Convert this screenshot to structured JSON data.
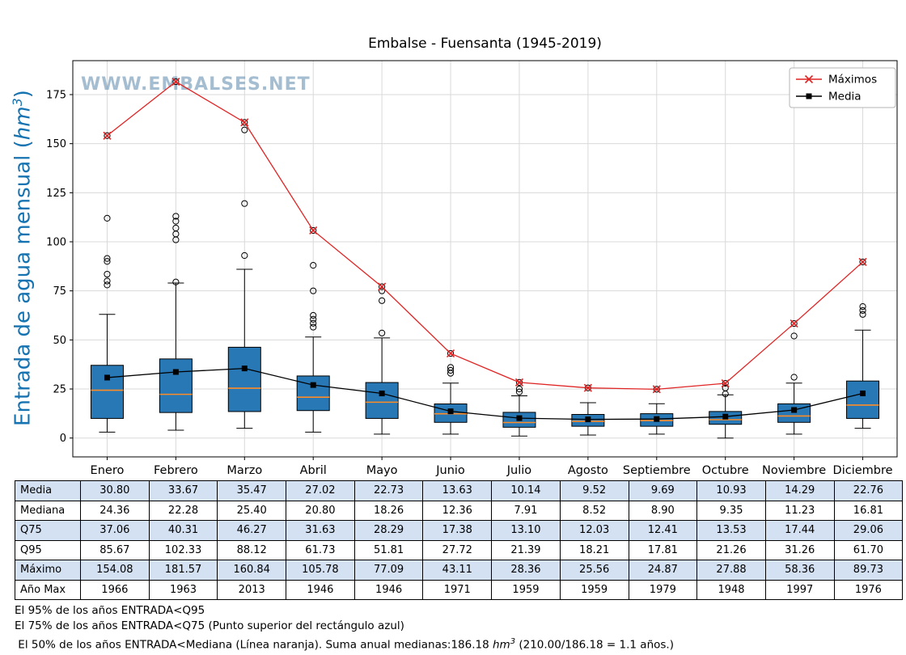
{
  "page": {
    "title": "Embalse - Fuensanta (1945-2019)",
    "watermark": "WWW.EMBALSES.NET",
    "ylabel_prefix": "Entrada de agua mensual (",
    "ylabel_unit": "hm",
    "ylabel_exp": "3",
    "ylabel_suffix": ")"
  },
  "legend": [
    {
      "label": "Máximos",
      "color": "#e02424",
      "marker": "x"
    },
    {
      "label": "Media",
      "color": "#000000",
      "marker": "square"
    }
  ],
  "chart_data": {
    "type": "box",
    "title": "Embalse - Fuensanta (1945-2019)",
    "xlabel": "",
    "ylabel": "Entrada de agua mensual (hm3)",
    "grid": true,
    "legend_position": "upper right",
    "ylim": [
      -9.6,
      192.3
    ],
    "yticks": [
      0,
      25,
      50,
      75,
      100,
      125,
      150,
      175
    ],
    "categories": [
      "Enero",
      "Febrero",
      "Marzo",
      "Abril",
      "Mayo",
      "Junio",
      "Julio",
      "Agosto",
      "Septiembre",
      "Octubre",
      "Noviembre",
      "Diciembre"
    ],
    "series": [
      {
        "name": "Máximos",
        "type": "line",
        "color": "#e02424",
        "marker": "x",
        "values": [
          154.08,
          181.57,
          160.84,
          105.78,
          77.09,
          43.11,
          28.36,
          25.56,
          24.87,
          27.88,
          58.36,
          89.73
        ]
      },
      {
        "name": "Media",
        "type": "line",
        "color": "#000000",
        "marker": "square",
        "values": [
          30.8,
          33.67,
          35.47,
          27.02,
          22.73,
          13.63,
          10.14,
          9.52,
          9.69,
          10.93,
          14.29,
          22.76
        ]
      }
    ],
    "box": {
      "median": [
        24.36,
        22.28,
        25.4,
        20.8,
        18.26,
        12.36,
        7.91,
        8.52,
        8.9,
        9.35,
        11.23,
        16.81
      ],
      "q3": [
        37.06,
        40.31,
        46.27,
        31.63,
        28.29,
        17.38,
        13.1,
        12.03,
        12.41,
        13.53,
        17.44,
        29.06
      ],
      "q1": [
        10,
        13,
        13.5,
        14,
        10,
        8,
        5.5,
        6,
        6,
        7,
        8,
        10
      ],
      "whisker_low": [
        3,
        4,
        5,
        3,
        2,
        2,
        1,
        1.5,
        2,
        0,
        2,
        5
      ],
      "whisker_high": [
        63,
        79,
        86,
        51.5,
        51,
        28,
        21.5,
        18,
        17.5,
        22,
        28,
        55
      ],
      "q95": [
        85.67,
        102.33,
        88.12,
        61.73,
        51.81,
        27.72,
        21.39,
        18.21,
        17.81,
        21.26,
        31.26,
        61.7
      ],
      "outliers": [
        [
          78,
          80,
          83.5,
          90,
          91.5,
          112,
          154.08
        ],
        [
          79.5,
          101,
          104,
          107,
          110.5,
          113,
          181.57
        ],
        [
          93,
          119.5,
          157,
          160.84
        ],
        [
          56.5,
          58.5,
          60.5,
          62.5,
          75,
          88,
          105.78
        ],
        [
          53.5,
          70,
          75,
          77.09
        ],
        [
          33,
          34.5,
          36,
          43.11
        ],
        [
          23.5,
          25,
          28.36
        ],
        [
          25.56
        ],
        [
          24.87
        ],
        [
          22.5,
          25.5,
          27.88
        ],
        [
          31,
          52,
          58.36
        ],
        [
          63,
          65,
          67,
          89.73
        ]
      ]
    },
    "colors": {
      "box_fill": "#2878b5",
      "median": "#ff8c26",
      "grid": "#d9d9d9",
      "frame": "#000000"
    }
  },
  "table": {
    "row_labels": [
      "Media",
      "Mediana",
      "Q75",
      "Q95",
      "Máximo",
      "Año Max"
    ],
    "rows": [
      [
        "30.80",
        "33.67",
        "35.47",
        "27.02",
        "22.73",
        "13.63",
        "10.14",
        "9.52",
        "9.69",
        "10.93",
        "14.29",
        "22.76"
      ],
      [
        "24.36",
        "22.28",
        "25.40",
        "20.80",
        "18.26",
        "12.36",
        "7.91",
        "8.52",
        "8.90",
        "9.35",
        "11.23",
        "16.81"
      ],
      [
        "37.06",
        "40.31",
        "46.27",
        "31.63",
        "28.29",
        "17.38",
        "13.10",
        "12.03",
        "12.41",
        "13.53",
        "17.44",
        "29.06"
      ],
      [
        "85.67",
        "102.33",
        "88.12",
        "61.73",
        "51.81",
        "27.72",
        "21.39",
        "18.21",
        "17.81",
        "21.26",
        "31.26",
        "61.70"
      ],
      [
        "154.08",
        "181.57",
        "160.84",
        "105.78",
        "77.09",
        "43.11",
        "28.36",
        "25.56",
        "24.87",
        "27.88",
        "58.36",
        "89.73"
      ],
      [
        "1966",
        "1963",
        "2013",
        "1946",
        "1946",
        "1971",
        "1959",
        "1959",
        "1979",
        "1948",
        "1997",
        "1976"
      ]
    ]
  },
  "footer": {
    "l1": "El 95% de los años ENTRADA<Q95",
    "l2": "El 75% de los años ENTRADA<Q75 (Punto superior del rectángulo azul)",
    "l3_prefix": " El 50% de los años ENTRADA<Mediana (Línea naranja). Suma anual medianas:186.18 ",
    "l3_unit": "hm",
    "l3_exp": "3",
    "l3_suffix": " (210.00/186.18 = 1.1 años.)"
  }
}
